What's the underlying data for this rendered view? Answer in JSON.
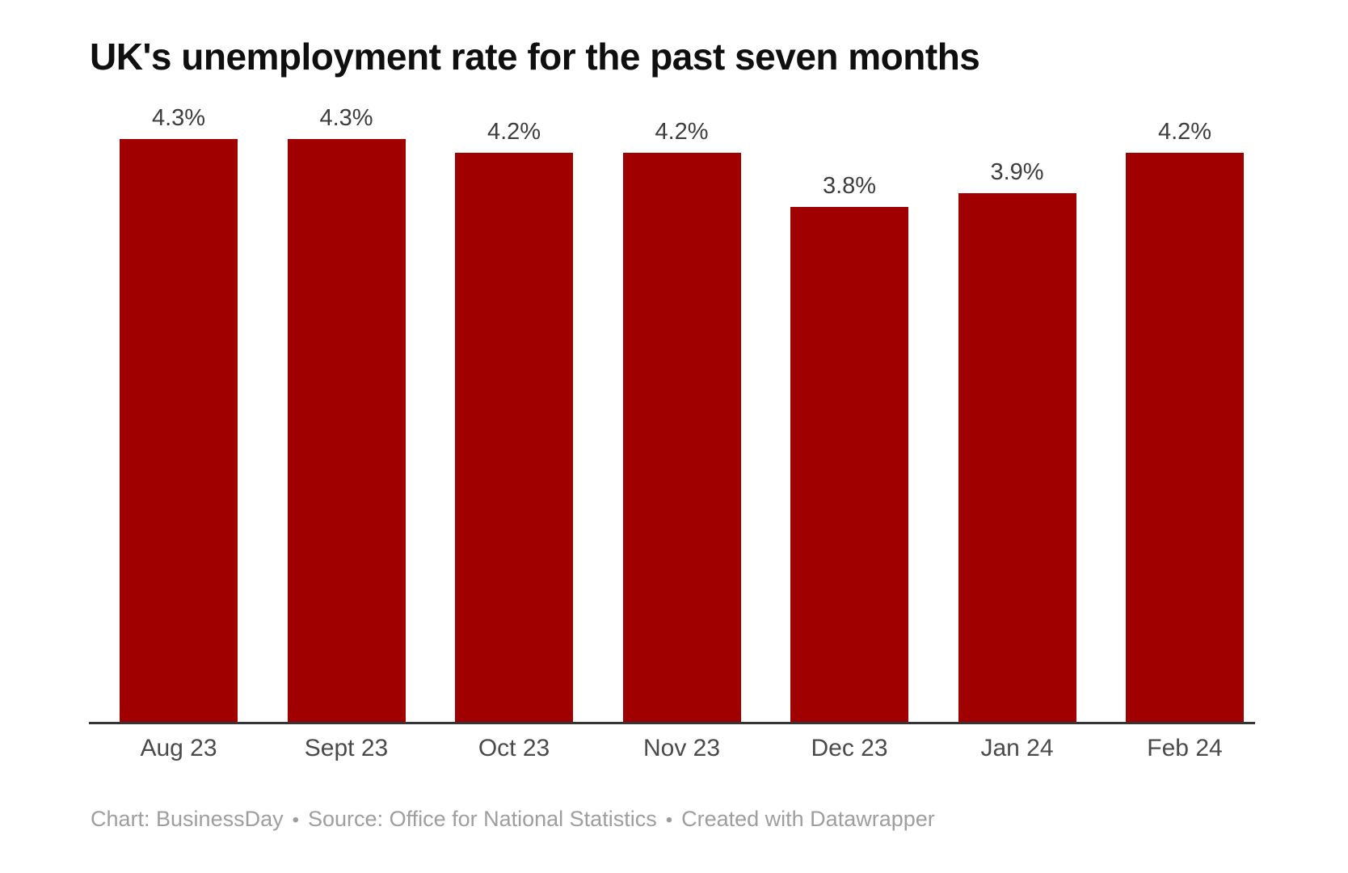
{
  "title": "UK's unemployment rate for the past seven months",
  "chart_data": {
    "type": "bar",
    "title": "UK's unemployment rate for the past seven months",
    "categories": [
      "Aug 23",
      "Sept 23",
      "Oct 23",
      "Nov 23",
      "Dec 23",
      "Jan 24",
      "Feb 24"
    ],
    "values": [
      4.3,
      4.3,
      4.2,
      4.2,
      3.8,
      3.9,
      4.2
    ],
    "value_labels": [
      "4.3%",
      "4.3%",
      "4.2%",
      "4.2%",
      "3.8%",
      "3.9%",
      "4.2%"
    ],
    "xlabel": "",
    "ylabel": "",
    "ylim": [
      0,
      4.3
    ],
    "grid": false,
    "legend": false,
    "bar_color": "#a00000",
    "value_label_color": "#3d3d3d",
    "axis_line_color": "#343434",
    "tick_label_color": "#4a4a4a"
  },
  "footer": {
    "chart_credit": "Chart: BusinessDay",
    "source": "Source: Office for National Statistics",
    "created": "Created with Datawrapper",
    "separator": "•"
  }
}
